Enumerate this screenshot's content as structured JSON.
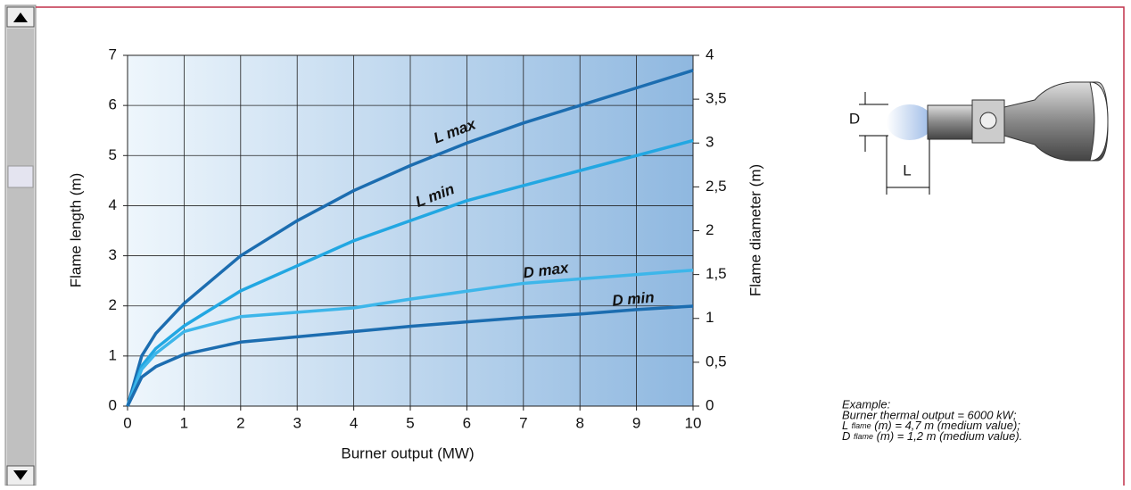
{
  "chart_data": {
    "type": "line",
    "x_label": "Burner output (MW)",
    "y_label": "Flame length (m)",
    "y2_label": "Flame diameter (m)",
    "x": [
      0,
      0.25,
      0.5,
      1,
      2,
      3,
      4,
      5,
      6,
      7,
      8,
      9,
      10
    ],
    "series": [
      {
        "name": "L max",
        "color": "#1c6db0",
        "values": [
          0,
          1.0,
          1.45,
          2.05,
          3.0,
          3.7,
          4.3,
          4.8,
          5.25,
          5.65,
          6.0,
          6.35,
          6.7
        ]
      },
      {
        "name": "L min",
        "color": "#22a7e2",
        "values": [
          0,
          0.8,
          1.15,
          1.6,
          2.3,
          2.8,
          3.3,
          3.7,
          4.1,
          4.4,
          4.7,
          5.0,
          5.3
        ]
      },
      {
        "name": "D max",
        "color": "#3db6ea",
        "axis": "y2",
        "values": [
          0,
          0.42,
          0.6,
          0.85,
          1.02,
          1.07,
          1.12,
          1.22,
          1.31,
          1.4,
          1.45,
          1.5,
          1.55
        ]
      },
      {
        "name": "D min",
        "color": "#1c6db0",
        "axis": "y2",
        "values": [
          0,
          0.33,
          0.45,
          0.59,
          0.73,
          0.79,
          0.85,
          0.91,
          0.96,
          1.01,
          1.05,
          1.1,
          1.14
        ]
      }
    ],
    "xlim": [
      0,
      10
    ],
    "xticks": [
      0,
      1,
      2,
      3,
      4,
      5,
      6,
      7,
      8,
      9,
      10
    ],
    "ylim": [
      0,
      7
    ],
    "yticks": [
      0,
      1,
      2,
      3,
      4,
      5,
      6,
      7
    ],
    "y2lim": [
      0,
      4
    ],
    "y2ticks": [
      0,
      {
        "value": 0.5,
        "label": "0,5"
      },
      1,
      {
        "value": 1.5,
        "label": "1,5"
      },
      2,
      {
        "value": 2.5,
        "label": "2,5"
      },
      3,
      {
        "value": 3.5,
        "label": "3,5"
      },
      4
    ],
    "grid": true
  },
  "diagram": {
    "d_label": "D",
    "l_label": "L"
  },
  "example": {
    "heading": "Example:",
    "line1": "Burner thermal output = 6000 kW;",
    "line2": {
      "symbol": "L",
      "sub": "flame",
      "text": "(m) = 4,7 m (medium value);"
    },
    "line3": {
      "symbol": "D",
      "sub": "flame",
      "text": "(m) = 1,2 m (medium value)."
    }
  }
}
